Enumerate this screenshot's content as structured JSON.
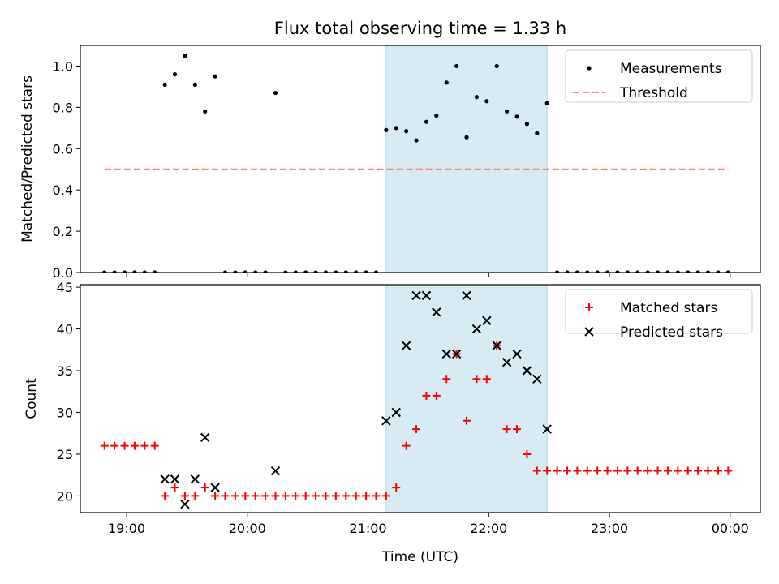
{
  "title": "Flux total observing time = 1.33 h",
  "xlabel": "Time (UTC)",
  "x_ticks": [
    {
      "t": "19:00",
      "label": "19:00"
    },
    {
      "t": "20:00",
      "label": "20:00"
    },
    {
      "t": "21:00",
      "label": "21:00"
    },
    {
      "t": "22:00",
      "label": "22:00"
    },
    {
      "t": "23:00",
      "label": "23:00"
    },
    {
      "t": "24:00",
      "label": "00:00"
    }
  ],
  "xlim": [
    "18:37",
    "24:15"
  ],
  "shaded_interval": {
    "start": "21:09",
    "end": "22:29",
    "color": "#add8e6"
  },
  "colors": {
    "measurements": "#000000",
    "threshold": "#ff7f7f",
    "matched": "#ff0000",
    "predicted": "#000000",
    "shade": "#add8e6"
  },
  "chart_data": [
    {
      "type": "scatter",
      "ylabel": "Matched/Predicted stars",
      "ylim": [
        0,
        1.1
      ],
      "y_ticks": [
        "0.0",
        "0.2",
        "0.4",
        "0.6",
        "0.8",
        "1.0"
      ],
      "legend_position": "top-right",
      "series": [
        {
          "name": "Measurements",
          "x": [
            "18:49",
            "18:54",
            "18:59",
            "19:04",
            "19:09",
            "19:14",
            "19:19",
            "19:24",
            "19:29",
            "19:34",
            "19:39",
            "19:44",
            "19:49",
            "19:54",
            "19:59",
            "20:04",
            "20:09",
            "20:14",
            "20:19",
            "20:24",
            "20:29",
            "20:34",
            "20:39",
            "20:44",
            "20:49",
            "20:54",
            "20:59",
            "21:04",
            "21:09",
            "21:14",
            "21:19",
            "21:24",
            "21:29",
            "21:34",
            "21:39",
            "21:44",
            "21:49",
            "21:54",
            "21:59",
            "22:04",
            "22:09",
            "22:14",
            "22:19",
            "22:24",
            "22:29",
            "22:34",
            "22:39",
            "22:44",
            "22:49",
            "22:54",
            "22:59",
            "23:04",
            "23:09",
            "23:14",
            "23:19",
            "23:24",
            "23:29",
            "23:34",
            "23:39",
            "23:44",
            "23:49",
            "23:54",
            "23:59"
          ],
          "y": [
            0,
            0,
            0,
            0,
            0,
            0,
            0.91,
            0.96,
            1.05,
            0.91,
            0.78,
            0.95,
            0,
            0,
            0,
            0,
            0,
            0.87,
            0,
            0,
            0,
            0,
            0,
            0,
            0,
            0,
            0,
            0,
            0.69,
            0.7,
            0.685,
            0.64,
            0.73,
            0.76,
            0.92,
            1.0,
            0.655,
            0.85,
            0.83,
            1.0,
            0.78,
            0.755,
            0.72,
            0.675,
            0.82,
            0,
            0,
            0,
            0,
            0,
            0,
            0,
            0,
            0,
            0,
            0,
            0,
            0,
            0,
            0,
            0,
            0,
            0
          ]
        },
        {
          "name": "Threshold",
          "x": [
            "18:49",
            "23:59"
          ],
          "y": [
            0.5,
            0.5
          ]
        }
      ]
    },
    {
      "type": "scatter",
      "ylabel": "Count",
      "ylim": [
        18,
        45.3
      ],
      "y_ticks": [
        "20",
        "25",
        "30",
        "35",
        "40",
        "45"
      ],
      "legend_position": "top-right",
      "series": [
        {
          "name": "Matched stars",
          "x": [
            "18:49",
            "18:54",
            "18:59",
            "19:04",
            "19:09",
            "19:14",
            "19:19",
            "19:24",
            "19:29",
            "19:34",
            "19:39",
            "19:44",
            "19:49",
            "19:54",
            "19:59",
            "20:04",
            "20:09",
            "20:14",
            "20:19",
            "20:24",
            "20:29",
            "20:34",
            "20:39",
            "20:44",
            "20:49",
            "20:54",
            "20:59",
            "21:04",
            "21:09",
            "21:14",
            "21:19",
            "21:24",
            "21:29",
            "21:34",
            "21:39",
            "21:44",
            "21:49",
            "21:54",
            "21:59",
            "22:04",
            "22:09",
            "22:14",
            "22:19",
            "22:24",
            "22:29",
            "22:34",
            "22:39",
            "22:44",
            "22:49",
            "22:54",
            "22:59",
            "23:04",
            "23:09",
            "23:14",
            "23:19",
            "23:24",
            "23:29",
            "23:34",
            "23:39",
            "23:44",
            "23:49",
            "23:54",
            "23:59"
          ],
          "y": [
            26,
            26,
            26,
            26,
            26,
            26,
            20,
            21,
            20,
            20,
            21,
            20,
            20,
            20,
            20,
            20,
            20,
            20,
            20,
            20,
            20,
            20,
            20,
            20,
            20,
            20,
            20,
            20,
            20,
            21,
            26,
            28,
            32,
            32,
            34,
            37,
            29,
            34,
            34,
            38,
            28,
            28,
            25,
            23,
            23,
            23,
            23,
            23,
            23,
            23,
            23,
            23,
            23,
            23,
            23,
            23,
            23,
            23,
            23,
            23,
            23,
            23,
            23
          ]
        },
        {
          "name": "Predicted stars",
          "x": [
            "19:19",
            "19:24",
            "19:29",
            "19:34",
            "19:39",
            "19:44",
            "20:14",
            "21:09",
            "21:14",
            "21:19",
            "21:24",
            "21:29",
            "21:34",
            "21:39",
            "21:44",
            "21:49",
            "21:54",
            "21:59",
            "22:04",
            "22:09",
            "22:14",
            "22:19",
            "22:24",
            "22:29"
          ],
          "y": [
            22,
            22,
            19,
            22,
            27,
            21,
            23,
            29,
            30,
            38,
            44,
            44,
            42,
            37,
            37,
            44,
            40,
            41,
            38,
            36,
            37,
            35,
            34,
            28
          ]
        }
      ]
    }
  ]
}
